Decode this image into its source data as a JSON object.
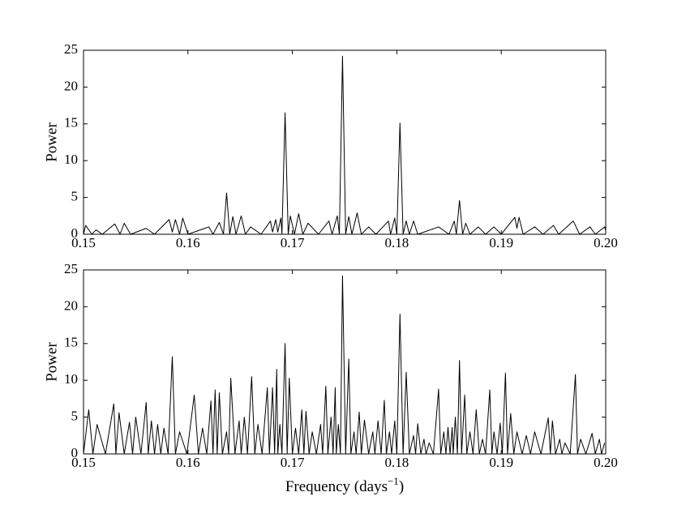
{
  "chart_data": [
    {
      "type": "line",
      "ylabel": "Power",
      "color": "#000000",
      "xlim": [
        0.15,
        0.2
      ],
      "ylim": [
        0,
        25
      ],
      "xticks": [
        0.15,
        0.16,
        0.17,
        0.18,
        0.19,
        {
          "value": 0.2,
          "label": "0.20"
        }
      ],
      "yticks": [
        0,
        5,
        10,
        15,
        20,
        25
      ],
      "x": [
        0.15,
        0.1502,
        0.1508,
        0.1512,
        0.1518,
        0.153,
        0.1535,
        0.1539,
        0.1545,
        0.156,
        0.1568,
        0.1582,
        0.1585,
        0.1588,
        0.1592,
        0.1595,
        0.16,
        0.162,
        0.1624,
        0.163,
        0.1634,
        0.1637,
        0.164,
        0.1643,
        0.1646,
        0.1651,
        0.1655,
        0.166,
        0.167,
        0.1679,
        0.1681,
        0.1684,
        0.1686,
        0.1689,
        0.169,
        0.1693,
        0.1696,
        0.1698,
        0.1702,
        0.1706,
        0.171,
        0.1715,
        0.1725,
        0.1735,
        0.1738,
        0.1743,
        0.1745,
        0.1748,
        0.1751,
        0.1754,
        0.1757,
        0.1762,
        0.1766,
        0.1773,
        0.178,
        0.1792,
        0.1794,
        0.1798,
        0.18,
        0.1803,
        0.1806,
        0.1809,
        0.1812,
        0.1816,
        0.182,
        0.184,
        0.185,
        0.1855,
        0.1857,
        0.186,
        0.1863,
        0.1866,
        0.187,
        0.1878,
        0.1885,
        0.1893,
        0.19,
        0.1913,
        0.1915,
        0.1917,
        0.1921,
        0.1932,
        0.194,
        0.195,
        0.1955,
        0.1969,
        0.1975,
        0.1985,
        0.199,
        0.1999,
        0.2
      ],
      "values": [
        0,
        1.2,
        0,
        0.6,
        0,
        1.4,
        0,
        1.5,
        0,
        0.8,
        0,
        2.0,
        0.3,
        2.0,
        0,
        2.2,
        0,
        1.0,
        0,
        1.6,
        0,
        5.6,
        0,
        2.4,
        0,
        2.5,
        0,
        1.0,
        0,
        1.8,
        0.3,
        2.0,
        0.3,
        2.2,
        0,
        16.5,
        0,
        2.5,
        0,
        2.8,
        0,
        1.5,
        0,
        1.8,
        0,
        2.5,
        0,
        24.2,
        0,
        2.4,
        0,
        2.9,
        0,
        1.0,
        0,
        1.8,
        0,
        2.2,
        0,
        15.1,
        0,
        1.8,
        0,
        1.8,
        0,
        1.0,
        0,
        1.8,
        0,
        4.6,
        0,
        1.5,
        0,
        1.0,
        0,
        1.0,
        0,
        2.3,
        0.8,
        2.3,
        0,
        1.0,
        0,
        1.2,
        0,
        1.8,
        0,
        1.0,
        0,
        1.0,
        0.5
      ]
    },
    {
      "type": "line",
      "ylabel": "Power",
      "xlabel": "Frequency (days",
      "xlabel_sup": "−1",
      "xlabel_end": ")",
      "color": "#000000",
      "xlim": [
        0.15,
        0.2
      ],
      "ylim": [
        0,
        25
      ],
      "xticks": [
        0.15,
        0.16,
        0.17,
        0.18,
        0.19,
        {
          "value": 0.2,
          "label": "0.20"
        }
      ],
      "yticks": [
        0,
        5,
        10,
        15,
        20,
        25
      ],
      "x": [
        0.15,
        0.1505,
        0.1509,
        0.1513,
        0.1521,
        0.1529,
        0.1531,
        0.1534,
        0.1539,
        0.1544,
        0.1547,
        0.155,
        0.1555,
        0.156,
        0.1562,
        0.1565,
        0.1568,
        0.1571,
        0.1574,
        0.1577,
        0.1581,
        0.1585,
        0.1588,
        0.1592,
        0.1599,
        0.1606,
        0.161,
        0.1614,
        0.1618,
        0.1622,
        0.1624,
        0.1626,
        0.1628,
        0.163,
        0.1633,
        0.1637,
        0.1639,
        0.1641,
        0.1645,
        0.1649,
        0.1651,
        0.1654,
        0.1657,
        0.1661,
        0.1664,
        0.1667,
        0.1671,
        0.1676,
        0.1678,
        0.1681,
        0.1683,
        0.1685,
        0.1686,
        0.1688,
        0.169,
        0.1693,
        0.1695,
        0.1697,
        0.17,
        0.1703,
        0.1706,
        0.1709,
        0.1711,
        0.1713,
        0.1716,
        0.1719,
        0.1723,
        0.1727,
        0.1729,
        0.1732,
        0.1734,
        0.1737,
        0.1739,
        0.1741,
        0.1742,
        0.1744,
        0.1746,
        0.1748,
        0.1751,
        0.1754,
        0.1756,
        0.1759,
        0.1761,
        0.1764,
        0.1766,
        0.1769,
        0.1773,
        0.1777,
        0.1779,
        0.1782,
        0.1785,
        0.1788,
        0.179,
        0.1793,
        0.1795,
        0.1798,
        0.18,
        0.1803,
        0.1806,
        0.1809,
        0.1812,
        0.1816,
        0.1818,
        0.182,
        0.1823,
        0.1826,
        0.1828,
        0.1831,
        0.1835,
        0.184,
        0.1842,
        0.1845,
        0.1847,
        0.1849,
        0.1851,
        0.1853,
        0.1854,
        0.1856,
        0.1858,
        0.186,
        0.1862,
        0.1865,
        0.1867,
        0.187,
        0.1873,
        0.1876,
        0.1879,
        0.1882,
        0.1885,
        0.1889,
        0.1891,
        0.1893,
        0.1896,
        0.1899,
        0.1901,
        0.1904,
        0.1906,
        0.1909,
        0.1912,
        0.1915,
        0.192,
        0.1924,
        0.1928,
        0.1932,
        0.1938,
        0.1945,
        0.1947,
        0.1949,
        0.1952,
        0.1956,
        0.1958,
        0.1961,
        0.1966,
        0.1971,
        0.1973,
        0.1976,
        0.1981,
        0.1987,
        0.199,
        0.1994,
        0.1996,
        0.1999
      ],
      "values": [
        0,
        6.0,
        0,
        4.0,
        0,
        6.8,
        0,
        5.6,
        0,
        4.3,
        0,
        5.0,
        0,
        7.0,
        0,
        4.5,
        0,
        4.0,
        0,
        3.5,
        0,
        13.2,
        0,
        3.0,
        0,
        8.0,
        0,
        3.5,
        0,
        7.2,
        0,
        8.7,
        0,
        8.3,
        0,
        3.0,
        0,
        10.3,
        0,
        4.5,
        0,
        5.0,
        0,
        10.5,
        0,
        4.0,
        0,
        9.0,
        0,
        9.0,
        0,
        11.5,
        0,
        4.0,
        0,
        15.0,
        0,
        10.3,
        0,
        3.5,
        0,
        6.0,
        0,
        5.8,
        0,
        3.0,
        0,
        4.0,
        0,
        9.2,
        0,
        5.0,
        0,
        9.0,
        0,
        4.0,
        0,
        24.2,
        0,
        12.9,
        0,
        3.0,
        0,
        5.7,
        0,
        4.6,
        0,
        3.0,
        0,
        4.5,
        0,
        7.3,
        0,
        3.0,
        0,
        4.5,
        0,
        19.0,
        0,
        11.1,
        0,
        2.5,
        0,
        4.1,
        0,
        2.0,
        0,
        1.5,
        0,
        8.8,
        0,
        3.0,
        0,
        3.6,
        0,
        3.6,
        0,
        5.0,
        0,
        12.7,
        0,
        8.0,
        0,
        3.0,
        0,
        6.0,
        0,
        2.0,
        0,
        8.7,
        0,
        3.0,
        0,
        4.2,
        0,
        11.0,
        0,
        5.5,
        0,
        3.0,
        0,
        2.5,
        0,
        3.0,
        0,
        4.9,
        0,
        4.5,
        0,
        2.0,
        0,
        1.5,
        0,
        10.8,
        0,
        2.0,
        0,
        2.8,
        0,
        2.0,
        0,
        1.5
      ]
    }
  ]
}
